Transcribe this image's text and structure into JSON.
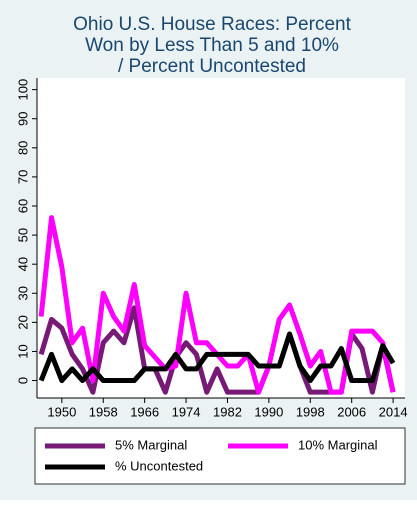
{
  "chart_data": {
    "type": "line",
    "title": [
      "Ohio U.S. House Races: Percent",
      "Won by Less Than 5 and 10%",
      "/ Percent Uncontested"
    ],
    "x": [
      1946,
      1948,
      1950,
      1952,
      1954,
      1956,
      1958,
      1960,
      1962,
      1964,
      1966,
      1968,
      1970,
      1972,
      1974,
      1976,
      1978,
      1980,
      1982,
      1984,
      1986,
      1988,
      1990,
      1992,
      1994,
      1996,
      1998,
      2000,
      2002,
      2004,
      2006,
      2008,
      2010,
      2012,
      2014
    ],
    "series": [
      {
        "name": "5% Marginal",
        "color": "#761a76",
        "values": [
          9,
          21,
          18,
          9,
          4,
          -4,
          13,
          17,
          13,
          25,
          4,
          4,
          -4,
          8,
          13,
          9,
          -4,
          4,
          -4,
          -4,
          -4,
          -4,
          5,
          5,
          16,
          5,
          -4,
          -4,
          -4,
          -4,
          16,
          11,
          -4,
          12,
          -4
        ]
      },
      {
        "name": "10% Marginal",
        "color": "#ff00ff",
        "values": [
          22,
          56,
          39,
          13,
          18,
          0,
          30,
          22,
          17,
          33,
          12,
          8,
          4,
          5,
          30,
          13,
          13,
          9,
          5,
          5,
          9,
          -4,
          5,
          21,
          26,
          16,
          5,
          10,
          -4,
          -4,
          17,
          17,
          17,
          13,
          -4
        ]
      },
      {
        "name": "% Uncontested",
        "color": "#000000",
        "values": [
          0,
          9,
          0,
          4,
          0,
          4,
          0,
          0,
          0,
          0,
          4,
          4,
          4,
          9,
          4,
          4,
          9,
          9,
          9,
          9,
          9,
          5,
          5,
          5,
          16,
          5,
          0,
          5,
          5,
          11,
          0,
          0,
          0,
          12,
          6
        ]
      }
    ],
    "xlim": [
      1945.2,
      2016.3
    ],
    "xticks": [
      1950,
      1958,
      1966,
      1974,
      1982,
      1990,
      1998,
      2006,
      2014
    ],
    "ylim": [
      -6,
      104
    ],
    "yticks": [
      0,
      10,
      20,
      30,
      40,
      50,
      60,
      70,
      80,
      90,
      100
    ],
    "grid": false,
    "legend": "bottom"
  }
}
